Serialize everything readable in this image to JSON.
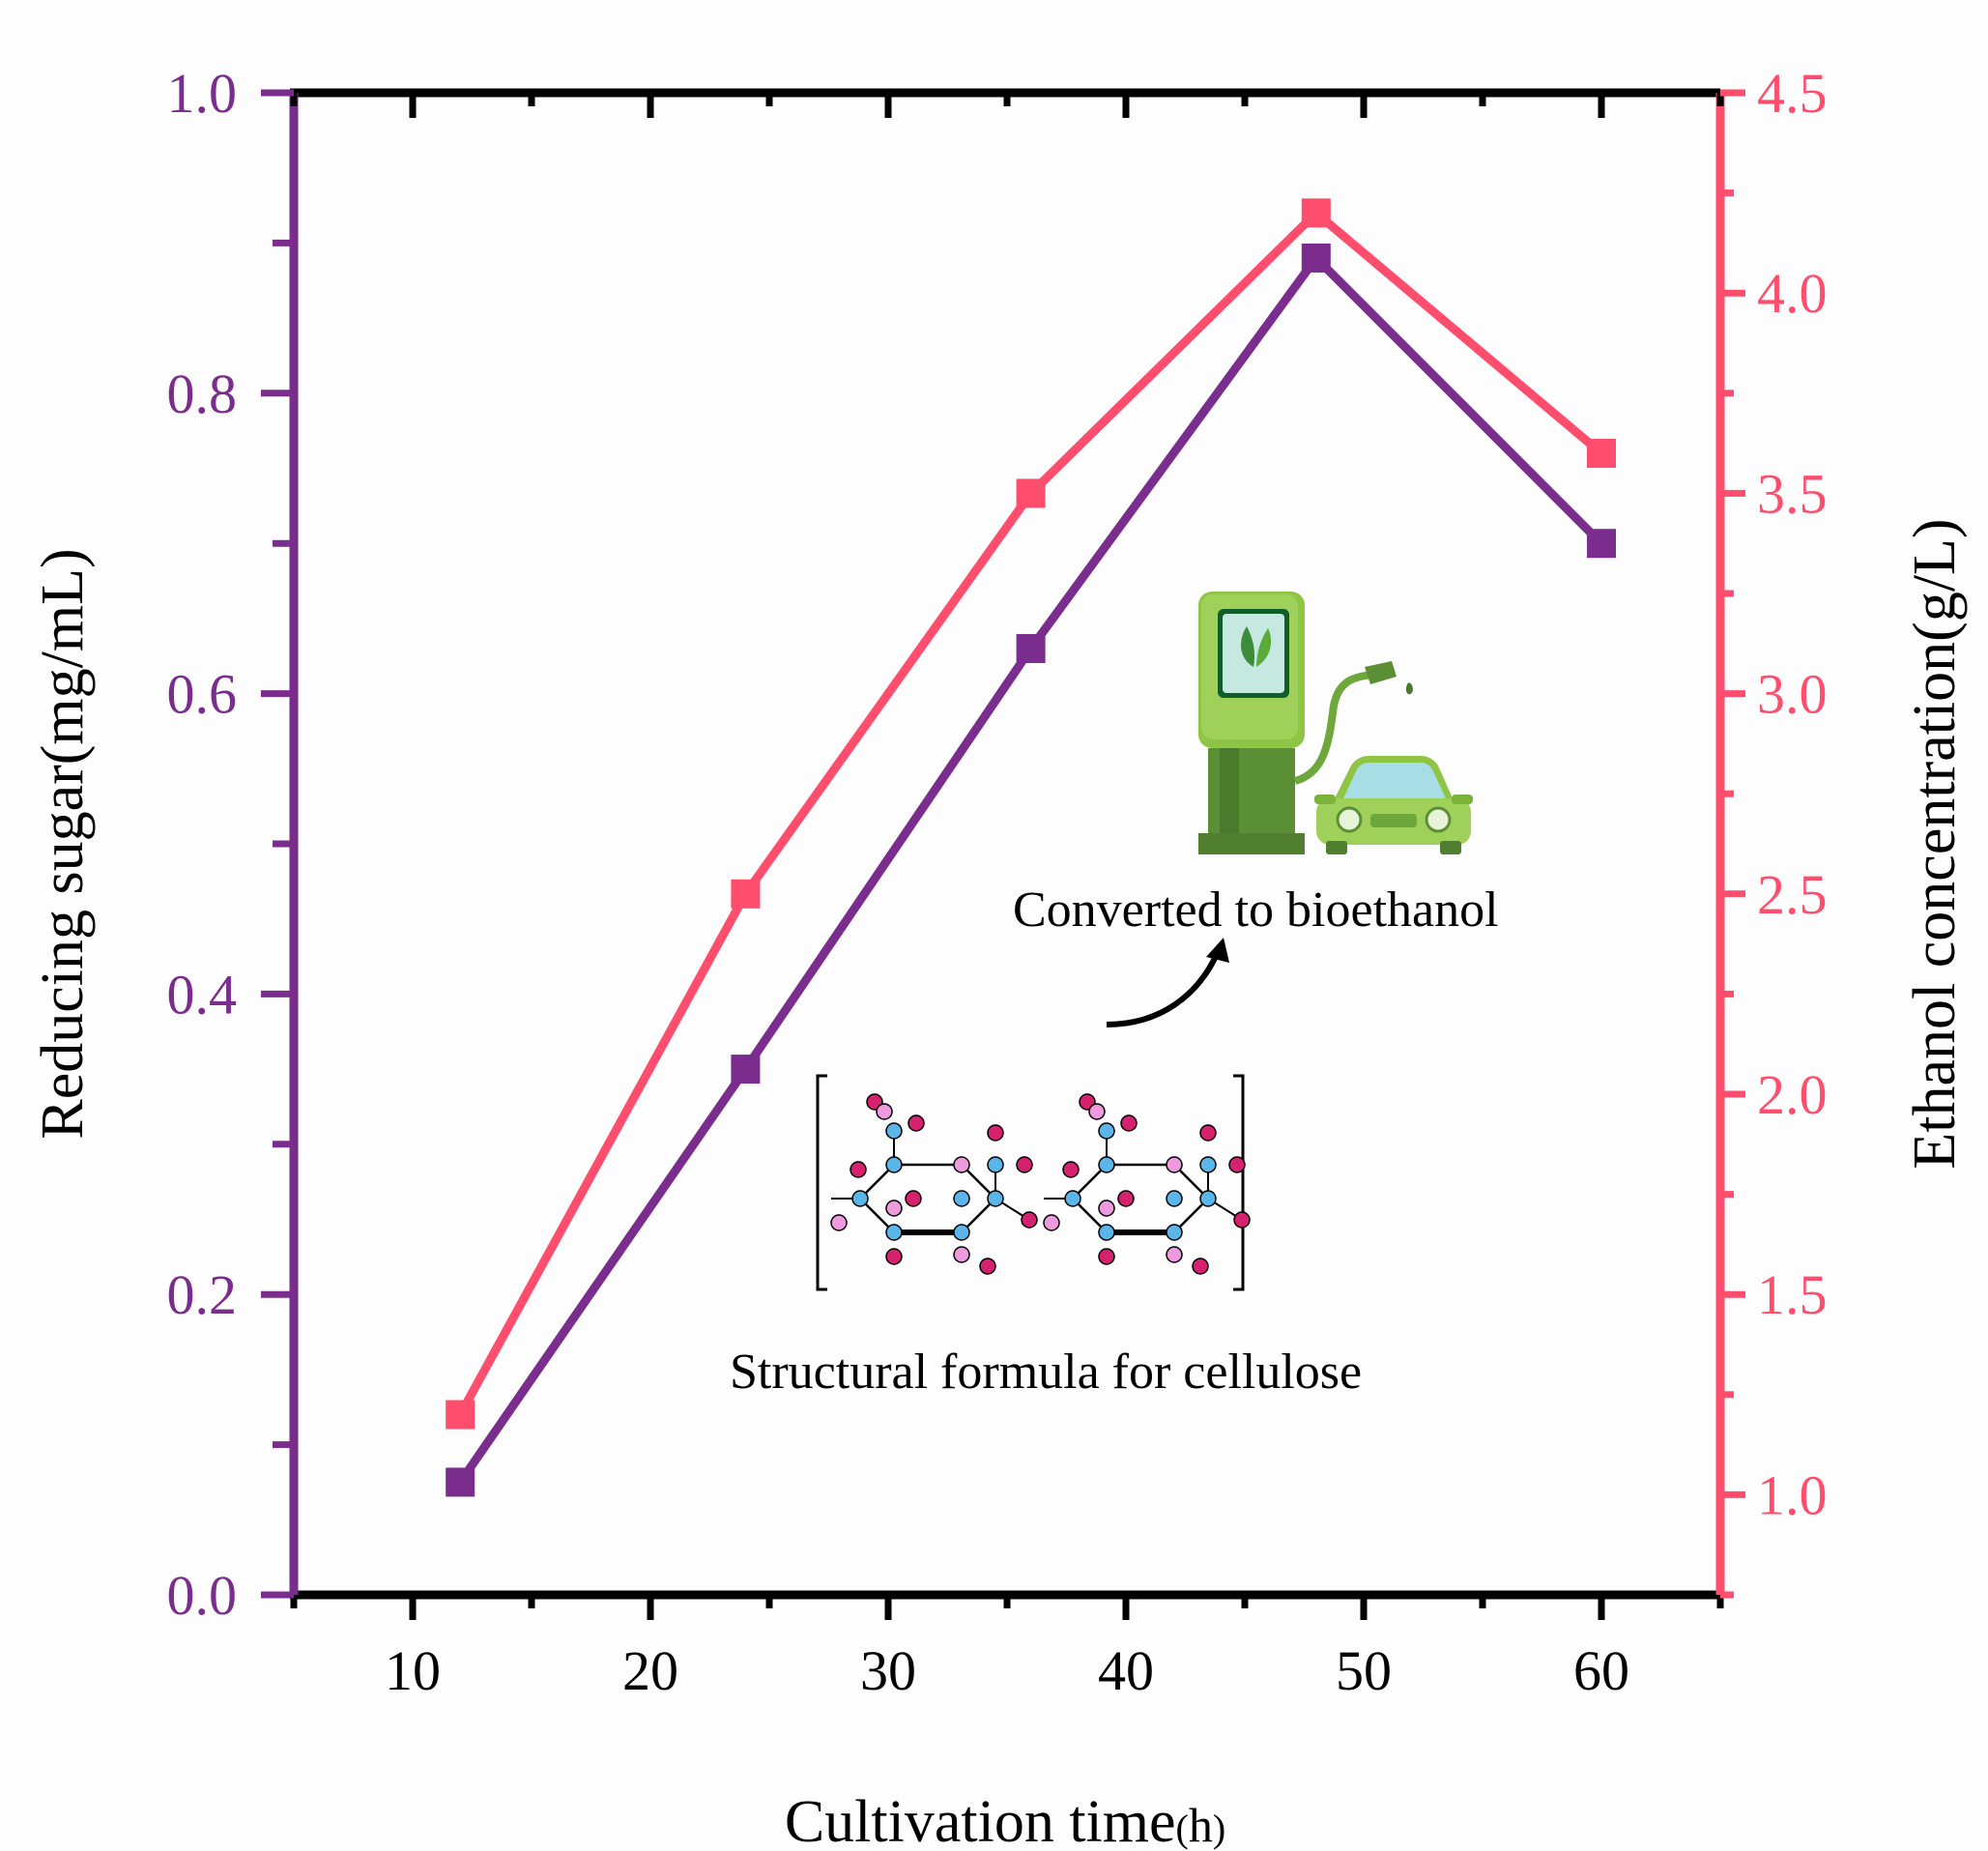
{
  "chart_data": {
    "type": "line",
    "title": "",
    "xlabel": "Cultivation time(h)",
    "xlabel_main": "Cultivation time",
    "xlabel_unit_open": "(",
    "xlabel_unit": "h",
    "xlabel_unit_close": ")",
    "ylabel_left": "Reducing sugar(mg/mL)",
    "ylabel_right": "Ethanol concentration(g/L)",
    "xlim": [
      5,
      65
    ],
    "ylim_left": [
      0,
      1.0
    ],
    "ylim_right": [
      0.75,
      4.5
    ],
    "x_ticks": [
      "10",
      "20",
      "30",
      "40",
      "50",
      "60"
    ],
    "y_left_ticks": [
      "0.0",
      "0.2",
      "0.4",
      "0.6",
      "0.8",
      "1.0"
    ],
    "y_right_ticks": [
      "1.0",
      "1.5",
      "2.0",
      "2.5",
      "3.0",
      "3.5",
      "4.0",
      "4.5"
    ],
    "grid": false,
    "x": [
      12,
      24,
      36,
      48,
      60
    ],
    "series": [
      {
        "axis": "left",
        "color": "#7b2d8e",
        "marker": "square",
        "values": [
          0.075,
          0.35,
          0.63,
          0.89,
          0.7
        ]
      },
      {
        "axis": "right",
        "color": "#ff4d6d",
        "marker": "square",
        "values": [
          1.2,
          2.5,
          3.5,
          4.2,
          3.6
        ]
      }
    ],
    "colors": {
      "left_axis": "#7b2d8e",
      "right_axis": "#ff4d6d",
      "frame": "#000000"
    },
    "annotations": [
      {
        "text": "Converted to bioethanol",
        "icon": "fuel-pump-and-car-illustration"
      },
      {
        "text": "Structural formula for cellulose",
        "icon": "cellulose-structure-illustration"
      }
    ]
  }
}
